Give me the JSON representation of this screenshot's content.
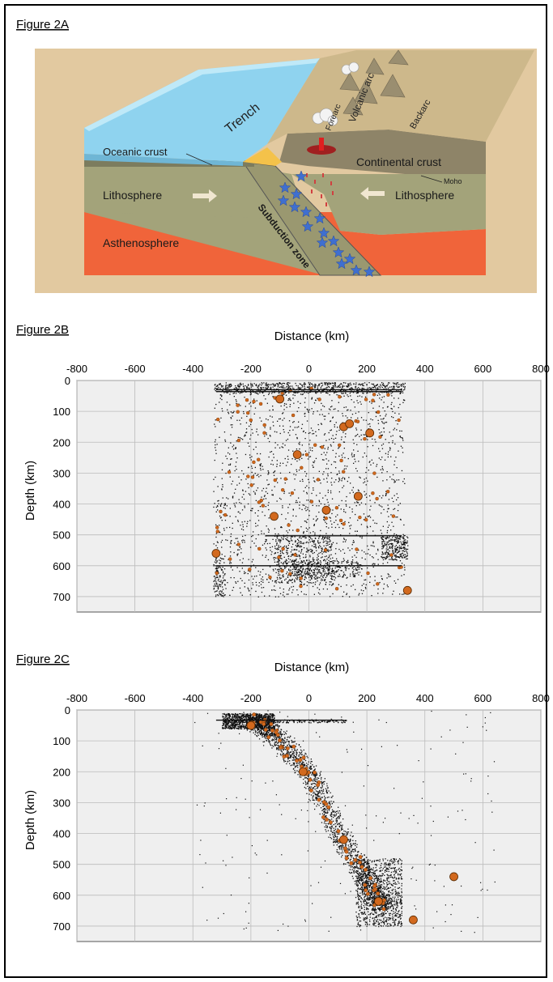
{
  "figure_2a": {
    "label": "Figure 2A",
    "labels": {
      "trench": "Trench",
      "forearc": "Forearc",
      "volcanic_arc": "Volcanic arc",
      "backarc": "Backarc",
      "oceanic_crust": "Oceanic crust",
      "continental_crust": "Continental crust",
      "moho": "Moho",
      "lithosphere_left": "Lithosphere",
      "lithosphere_right": "Lithosphere",
      "asthenosphere": "Asthenosphere",
      "subduction_zone": "Subduction zone"
    },
    "colors": {
      "ocean": "#8fd3ef",
      "ocean_top": "#bfe9f8",
      "beige": "#e2c9a0",
      "lithosphere": "#a3a37a",
      "asthenosphere": "#f0643a",
      "crust": "#8e8468",
      "star": "#3f6fd0",
      "accretion": "#f4c24a"
    }
  },
  "figure_2b": {
    "label": "Figure 2B",
    "chart_data": {
      "type": "scatter",
      "xlabel": "Distance (km)",
      "ylabel": "Depth (km)",
      "xlim": [
        -800,
        800
      ],
      "ylim": [
        0,
        750
      ],
      "x_ticks": [
        "-800",
        "-600",
        "-400",
        "-200",
        "0",
        "200",
        "400",
        "600",
        "800"
      ],
      "y_ticks": [
        "0",
        "100",
        "200",
        "300",
        "400",
        "500",
        "600",
        "700"
      ],
      "x_axis_position": "top",
      "y_inverted": true,
      "grid": true,
      "point_color": "#111111",
      "highlight_color": "#d2691e",
      "clusters": [
        {
          "x_range": [
            -330,
            330
          ],
          "y_range": [
            5,
            700
          ],
          "count": 1800
        },
        {
          "x_range": [
            -330,
            330
          ],
          "y_range": [
            5,
            40
          ],
          "count": 600
        },
        {
          "x_range": [
            -120,
            80
          ],
          "y_range": [
            500,
            660
          ],
          "count": 500
        },
        {
          "x_range": [
            250,
            340
          ],
          "y_range": [
            500,
            580
          ],
          "count": 250
        },
        {
          "x_range": [
            -330,
            -290
          ],
          "y_range": [
            560,
            700
          ],
          "count": 120
        },
        {
          "x_range": [
            -60,
            180
          ],
          "y_range": [
            580,
            640
          ],
          "count": 250
        }
      ],
      "large_events": [
        {
          "x": -100,
          "y": 60
        },
        {
          "x": 120,
          "y": 150
        },
        {
          "x": 140,
          "y": 140
        },
        {
          "x": 210,
          "y": 170
        },
        {
          "x": 170,
          "y": 375
        },
        {
          "x": -320,
          "y": 560
        },
        {
          "x": 340,
          "y": 680
        },
        {
          "x": -40,
          "y": 240
        },
        {
          "x": 60,
          "y": 420
        },
        {
          "x": -120,
          "y": 440
        }
      ]
    }
  },
  "figure_2c": {
    "label": "Figure 2C",
    "chart_data": {
      "type": "scatter",
      "xlabel": "Distance (km)",
      "ylabel": "Depth (km)",
      "xlim": [
        -800,
        800
      ],
      "ylim": [
        0,
        750
      ],
      "x_ticks": [
        "-800",
        "-600",
        "-400",
        "-200",
        "0",
        "200",
        "400",
        "600",
        "800"
      ],
      "y_ticks": [
        "0",
        "100",
        "200",
        "300",
        "400",
        "500",
        "600",
        "700"
      ],
      "x_axis_position": "top",
      "y_inverted": true,
      "grid": true,
      "point_color": "#111111",
      "highlight_color": "#d2691e",
      "trend": [
        [
          -200,
          30
        ],
        [
          -120,
          80
        ],
        [
          0,
          200
        ],
        [
          100,
          400
        ],
        [
          200,
          550
        ],
        [
          260,
          650
        ]
      ],
      "clusters": [
        {
          "x_range": [
            -300,
            -120
          ],
          "y_range": [
            10,
            60
          ],
          "count": 900
        },
        {
          "x_range": [
            -300,
            130
          ],
          "y_range": [
            30,
            40
          ],
          "count": 200
        },
        {
          "x_range": [
            160,
            320
          ],
          "y_range": [
            480,
            700
          ],
          "count": 900
        }
      ],
      "large_events": [
        {
          "x": 360,
          "y": 680
        },
        {
          "x": 500,
          "y": 540
        },
        {
          "x": -200,
          "y": 50
        },
        {
          "x": -20,
          "y": 200
        },
        {
          "x": 120,
          "y": 420
        },
        {
          "x": 240,
          "y": 620
        }
      ]
    }
  }
}
